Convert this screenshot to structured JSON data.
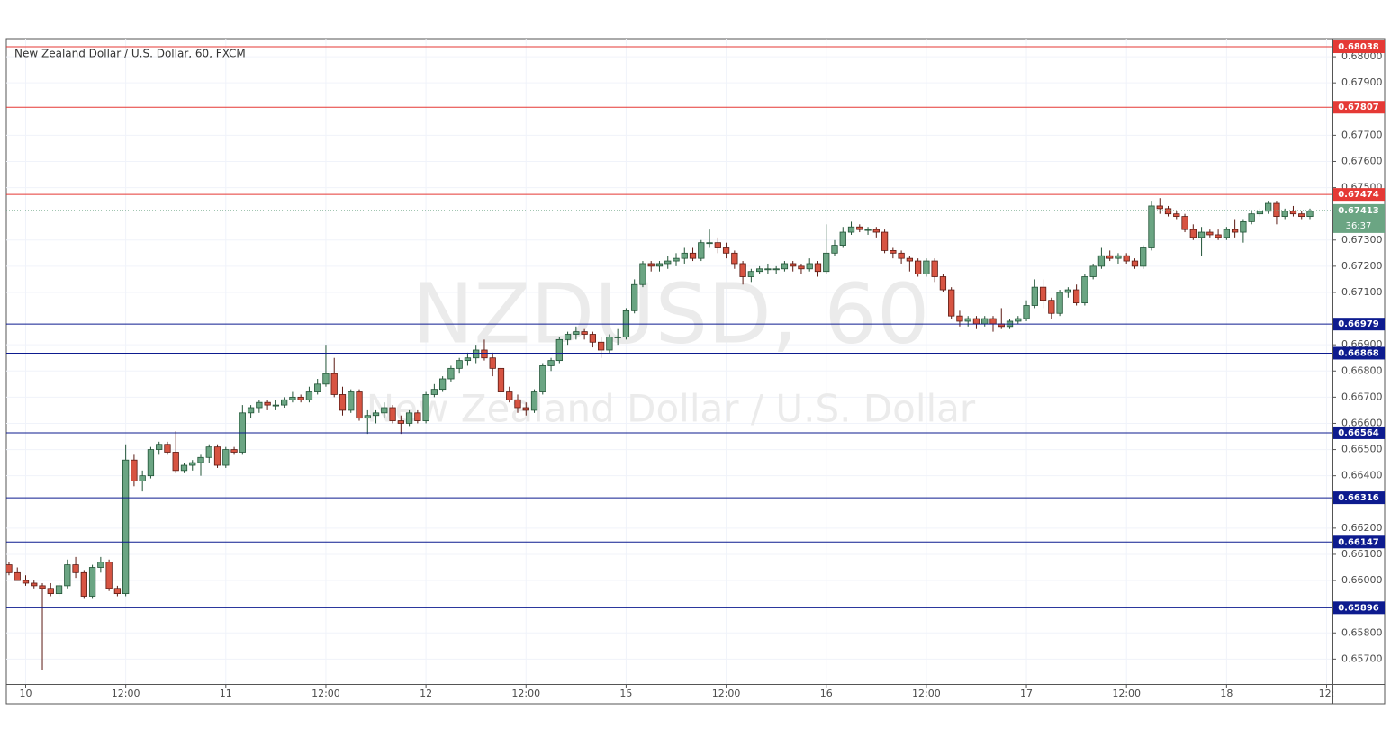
{
  "chart_data": {
    "type": "candlestick",
    "title": "New Zealand Dollar / U.S. Dollar, 60, FXCM",
    "watermark": "NZDUSD, 60",
    "watermark_subtitle": "New Zealand Dollar / U.S. Dollar",
    "up_color": "#6ba583",
    "down_color": "#d75442",
    "grid": true,
    "ylim": [
      0.65605,
      0.68069
    ],
    "xlim": [
      -0.32,
      158.7
    ],
    "yticks": [
      {
        "value": 0.68,
        "label": "0.68000"
      },
      {
        "value": 0.679,
        "label": "0.67900"
      },
      {
        "value": 0.677,
        "label": "0.67700"
      },
      {
        "value": 0.676,
        "label": "0.67600"
      },
      {
        "value": 0.675,
        "label": "0.67500"
      },
      {
        "value": 0.673,
        "label": "0.67300"
      },
      {
        "value": 0.672,
        "label": "0.67200"
      },
      {
        "value": 0.671,
        "label": "0.67100"
      },
      {
        "value": 0.669,
        "label": "0.66900"
      },
      {
        "value": 0.668,
        "label": "0.66800"
      },
      {
        "value": 0.667,
        "label": "0.66700"
      },
      {
        "value": 0.666,
        "label": "0.66600"
      },
      {
        "value": 0.665,
        "label": "0.66500"
      },
      {
        "value": 0.664,
        "label": "0.66400"
      },
      {
        "value": 0.662,
        "label": "0.66200"
      },
      {
        "value": 0.661,
        "label": "0.66100"
      },
      {
        "value": 0.66,
        "label": "0.66000"
      },
      {
        "value": 0.658,
        "label": "0.65800"
      },
      {
        "value": 0.657,
        "label": "0.65700"
      }
    ],
    "xticks": [
      {
        "value": 2,
        "label": "10"
      },
      {
        "value": 14,
        "label": "12:00"
      },
      {
        "value": 26,
        "label": "11"
      },
      {
        "value": 38,
        "label": "12:00"
      },
      {
        "value": 50,
        "label": "12"
      },
      {
        "value": 62,
        "label": "12:00"
      },
      {
        "value": 74,
        "label": "15"
      },
      {
        "value": 86,
        "label": "12:00"
      },
      {
        "value": 98,
        "label": "16"
      },
      {
        "value": 110,
        "label": "12:00"
      },
      {
        "value": 122,
        "label": "17"
      },
      {
        "value": 134,
        "label": "12:00"
      },
      {
        "value": 146,
        "label": "18"
      },
      {
        "value": 158,
        "label": "12:"
      }
    ],
    "resistance_color": "#e53935",
    "resistance_levels": [
      0.68038,
      0.67807,
      0.67474
    ],
    "support_color": "#0d1b8f",
    "support_levels": [
      0.66979,
      0.66868,
      0.66564,
      0.66316,
      0.66147,
      0.65896
    ],
    "last_price": 0.67413,
    "countdown": "36:37",
    "open": [
      0.6606,
      0.6603,
      0.66,
      0.6599,
      0.6598,
      0.6597,
      0.6595,
      0.6598,
      0.6606,
      0.6603,
      0.6594,
      0.6605,
      0.6607,
      0.6597,
      0.6595,
      0.6646,
      0.6638,
      0.664,
      0.665,
      0.6652,
      0.6649,
      0.6642,
      0.6644,
      0.6645,
      0.6647,
      0.6651,
      0.6644,
      0.665,
      0.6649,
      0.6664,
      0.6666,
      0.6668,
      0.6667,
      0.6667,
      0.6669,
      0.667,
      0.6669,
      0.6672,
      0.6675,
      0.6679,
      0.6671,
      0.6665,
      0.6672,
      0.6662,
      0.6663,
      0.6664,
      0.6666,
      0.6661,
      0.666,
      0.6664,
      0.6661,
      0.6671,
      0.6673,
      0.6677,
      0.6681,
      0.6684,
      0.6685,
      0.6688,
      0.6685,
      0.6681,
      0.6672,
      0.6669,
      0.6666,
      0.6665,
      0.6672,
      0.6682,
      0.6684,
      0.6692,
      0.6694,
      0.6695,
      0.6694,
      0.6691,
      0.6688,
      0.6693,
      0.6693,
      0.6703,
      0.6713,
      0.6721,
      0.672,
      0.6721,
      0.6722,
      0.6723,
      0.6725,
      0.6723,
      0.6729,
      0.6729,
      0.6727,
      0.6725,
      0.6721,
      0.6716,
      0.6718,
      0.6719,
      0.6719,
      0.6719,
      0.6721,
      0.672,
      0.6719,
      0.6721,
      0.6718,
      0.6725,
      0.6728,
      0.6733,
      0.6735,
      0.6734,
      0.6734,
      0.6733,
      0.6726,
      0.6725,
      0.6723,
      0.6722,
      0.6717,
      0.6722,
      0.6716,
      0.6711,
      0.6701,
      0.6699,
      0.67,
      0.6698,
      0.67,
      0.6698,
      0.6697,
      0.6699,
      0.67,
      0.6705,
      0.6712,
      0.6707,
      0.6702,
      0.671,
      0.6711,
      0.6706,
      0.6716,
      0.672,
      0.6724,
      0.6723,
      0.6724,
      0.6722,
      0.672,
      0.6727,
      0.6743,
      0.6742,
      0.674,
      0.6739,
      0.6734,
      0.6731,
      0.6733,
      0.6732,
      0.6731,
      0.6734,
      0.6733,
      0.6737,
      0.674,
      0.6741,
      0.6744,
      0.6739,
      0.6741,
      0.674,
      0.6739
    ],
    "high": [
      0.6607,
      0.6605,
      0.6602,
      0.66,
      0.6599,
      0.6599,
      0.6599,
      0.6608,
      0.6609,
      0.6604,
      0.6606,
      0.6609,
      0.6608,
      0.6598,
      0.6652,
      0.6648,
      0.6642,
      0.6651,
      0.6653,
      0.6653,
      0.6657,
      0.6645,
      0.6646,
      0.6648,
      0.6652,
      0.6652,
      0.6651,
      0.6651,
      0.6667,
      0.6667,
      0.6669,
      0.6669,
      0.6669,
      0.667,
      0.6672,
      0.6671,
      0.6674,
      0.6677,
      0.669,
      0.6685,
      0.6674,
      0.6673,
      0.6673,
      0.6665,
      0.6665,
      0.6668,
      0.6667,
      0.6663,
      0.6665,
      0.6665,
      0.6672,
      0.6675,
      0.6678,
      0.6682,
      0.6685,
      0.6687,
      0.669,
      0.6692,
      0.6687,
      0.6682,
      0.6674,
      0.6671,
      0.6668,
      0.6673,
      0.6683,
      0.6685,
      0.6693,
      0.6695,
      0.6697,
      0.6696,
      0.6695,
      0.6693,
      0.6694,
      0.6696,
      0.6704,
      0.6715,
      0.6722,
      0.6722,
      0.6722,
      0.6724,
      0.6725,
      0.6727,
      0.6727,
      0.673,
      0.6734,
      0.6731,
      0.6729,
      0.6726,
      0.6722,
      0.6719,
      0.672,
      0.6721,
      0.672,
      0.6722,
      0.6722,
      0.6721,
      0.6723,
      0.6722,
      0.6736,
      0.673,
      0.6735,
      0.6737,
      0.6736,
      0.6735,
      0.6735,
      0.6734,
      0.6727,
      0.6726,
      0.6724,
      0.6723,
      0.6723,
      0.6723,
      0.6717,
      0.6712,
      0.6703,
      0.6701,
      0.6701,
      0.6701,
      0.6701,
      0.6704,
      0.67,
      0.6701,
      0.6707,
      0.6715,
      0.6715,
      0.6708,
      0.6711,
      0.6712,
      0.6713,
      0.6717,
      0.6721,
      0.6727,
      0.6726,
      0.6725,
      0.6725,
      0.6723,
      0.6728,
      0.6745,
      0.6746,
      0.6743,
      0.6741,
      0.674,
      0.6736,
      0.6735,
      0.6734,
      0.6734,
      0.6735,
      0.6738,
      0.6738,
      0.6741,
      0.6742,
      0.6745,
      0.6745,
      0.6742,
      0.6743,
      0.6741,
      0.6742
    ],
    "low": [
      0.6602,
      0.66,
      0.6598,
      0.6597,
      0.6566,
      0.6594,
      0.6594,
      0.6597,
      0.6601,
      0.6593,
      0.6593,
      0.6603,
      0.6596,
      0.6594,
      0.6594,
      0.6636,
      0.6634,
      0.6639,
      0.6648,
      0.6648,
      0.6641,
      0.6641,
      0.6642,
      0.664,
      0.6645,
      0.6643,
      0.6643,
      0.6648,
      0.6648,
      0.6662,
      0.6664,
      0.6665,
      0.6665,
      0.6666,
      0.6668,
      0.6668,
      0.6668,
      0.6671,
      0.6674,
      0.667,
      0.6663,
      0.6664,
      0.6661,
      0.6656,
      0.666,
      0.6662,
      0.666,
      0.6656,
      0.6659,
      0.666,
      0.666,
      0.667,
      0.6672,
      0.6676,
      0.6679,
      0.6682,
      0.6683,
      0.6684,
      0.6678,
      0.667,
      0.6668,
      0.6664,
      0.6663,
      0.6664,
      0.6671,
      0.668,
      0.6683,
      0.669,
      0.6692,
      0.6692,
      0.6689,
      0.6685,
      0.6687,
      0.669,
      0.6692,
      0.6702,
      0.6712,
      0.6718,
      0.6718,
      0.6719,
      0.672,
      0.6721,
      0.6722,
      0.6722,
      0.6727,
      0.6725,
      0.6723,
      0.6719,
      0.6713,
      0.6714,
      0.6717,
      0.6717,
      0.6717,
      0.6718,
      0.6718,
      0.6717,
      0.6718,
      0.6716,
      0.6717,
      0.6724,
      0.6727,
      0.6732,
      0.6733,
      0.6732,
      0.6731,
      0.6725,
      0.6723,
      0.6721,
      0.6718,
      0.6716,
      0.6716,
      0.6714,
      0.671,
      0.67,
      0.6697,
      0.6697,
      0.6696,
      0.6697,
      0.6695,
      0.6696,
      0.6696,
      0.6698,
      0.6699,
      0.6704,
      0.6704,
      0.67,
      0.6701,
      0.6708,
      0.6705,
      0.6705,
      0.6715,
      0.6719,
      0.6722,
      0.6721,
      0.6721,
      0.6719,
      0.6719,
      0.6726,
      0.674,
      0.6739,
      0.6738,
      0.6733,
      0.673,
      0.6724,
      0.6731,
      0.673,
      0.673,
      0.6731,
      0.6729,
      0.6736,
      0.6739,
      0.674,
      0.6736,
      0.6738,
      0.6739,
      0.6738,
      0.6738
    ],
    "close": [
      0.6603,
      0.66,
      0.6599,
      0.6598,
      0.6597,
      0.6595,
      0.6598,
      0.6606,
      0.6603,
      0.6594,
      0.6605,
      0.6607,
      0.6597,
      0.6595,
      0.6646,
      0.6638,
      0.664,
      0.665,
      0.6652,
      0.6649,
      0.6642,
      0.6644,
      0.6645,
      0.6647,
      0.6651,
      0.6644,
      0.665,
      0.6649,
      0.6664,
      0.6666,
      0.6668,
      0.6667,
      0.6667,
      0.6669,
      0.667,
      0.6669,
      0.6672,
      0.6675,
      0.6679,
      0.6671,
      0.6665,
      0.6672,
      0.6662,
      0.6663,
      0.6664,
      0.6666,
      0.6661,
      0.666,
      0.6664,
      0.6661,
      0.6671,
      0.6673,
      0.6677,
      0.6681,
      0.6684,
      0.6685,
      0.6688,
      0.6685,
      0.6681,
      0.6672,
      0.6669,
      0.6666,
      0.6665,
      0.6672,
      0.6682,
      0.6684,
      0.6692,
      0.6694,
      0.6695,
      0.6694,
      0.6691,
      0.6688,
      0.6693,
      0.6693,
      0.6703,
      0.6713,
      0.6721,
      0.672,
      0.6721,
      0.6722,
      0.6723,
      0.6725,
      0.6723,
      0.6729,
      0.6729,
      0.6727,
      0.6725,
      0.6721,
      0.6716,
      0.6718,
      0.6719,
      0.6719,
      0.6719,
      0.6721,
      0.672,
      0.6719,
      0.6721,
      0.6718,
      0.6725,
      0.6728,
      0.6733,
      0.6735,
      0.6734,
      0.6734,
      0.6733,
      0.6726,
      0.6725,
      0.6723,
      0.6722,
      0.6717,
      0.6722,
      0.6716,
      0.6711,
      0.6701,
      0.6699,
      0.67,
      0.6698,
      0.67,
      0.6698,
      0.6697,
      0.6699,
      0.67,
      0.6705,
      0.6712,
      0.6707,
      0.6702,
      0.671,
      0.6711,
      0.6706,
      0.6716,
      0.672,
      0.6724,
      0.6723,
      0.6724,
      0.6722,
      0.672,
      0.6727,
      0.6743,
      0.6742,
      0.674,
      0.6739,
      0.6734,
      0.6731,
      0.6733,
      0.6732,
      0.6731,
      0.6734,
      0.6733,
      0.6737,
      0.674,
      0.6741,
      0.6744,
      0.6739,
      0.6741,
      0.674,
      0.6739,
      0.6741
    ]
  }
}
